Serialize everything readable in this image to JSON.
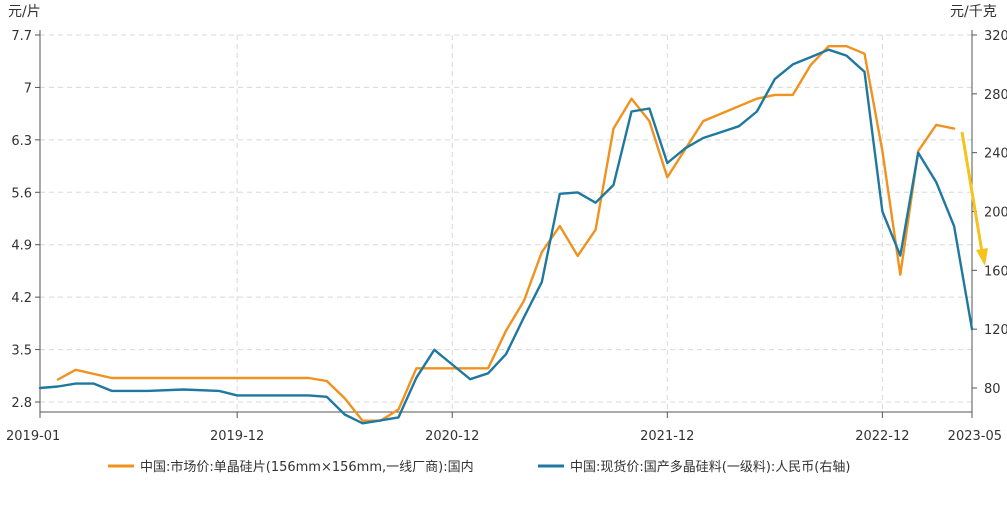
{
  "chart_data": {
    "type": "line",
    "left_unit": "元/片",
    "right_unit": "元/千克",
    "x_ticks": [
      "2019-01",
      "2019-12",
      "2020-12",
      "2021-12",
      "2022-12",
      "2023-05"
    ],
    "y_left_ticks": [
      "7.7",
      "7",
      "6.3",
      "5.6",
      "4.9",
      "4.2",
      "3.5",
      "2.8"
    ],
    "y_right_ticks": [
      "320",
      "280",
      "240",
      "200",
      "160",
      "120",
      "80"
    ],
    "ylim_left": [
      2.8,
      7.7
    ],
    "ylim_right": [
      80,
      320
    ],
    "grid": true,
    "legend_position": "bottom",
    "colors": {
      "wafer": "#F0921F",
      "polysilicon": "#1F78A0",
      "arrow": "#F7C31A"
    },
    "series": [
      {
        "name": "中国:市场价:单晶硅片(156mm×156mm,一线厂商):国内",
        "axis": "left",
        "points": [
          [
            "2019-02",
            3.1
          ],
          [
            "2019-03",
            3.23
          ],
          [
            "2019-05",
            3.12
          ],
          [
            "2019-08",
            3.12
          ],
          [
            "2019-12",
            3.12
          ],
          [
            "2020-04",
            3.12
          ],
          [
            "2020-05",
            3.08
          ],
          [
            "2020-06",
            2.85
          ],
          [
            "2020-07",
            2.55
          ],
          [
            "2020-08",
            2.55
          ],
          [
            "2020-09",
            2.7
          ],
          [
            "2020-10",
            3.25
          ],
          [
            "2020-12",
            3.25
          ],
          [
            "2021-02",
            3.25
          ],
          [
            "2021-03",
            3.75
          ],
          [
            "2021-04",
            4.15
          ],
          [
            "2021-05",
            4.8
          ],
          [
            "2021-06",
            5.15
          ],
          [
            "2021-07",
            4.75
          ],
          [
            "2021-08",
            5.1
          ],
          [
            "2021-09",
            6.45
          ],
          [
            "2021-10",
            6.85
          ],
          [
            "2021-11",
            6.55
          ],
          [
            "2021-12",
            5.8
          ],
          [
            "2022-02",
            6.55
          ],
          [
            "2022-03",
            6.65
          ],
          [
            "2022-05",
            6.85
          ],
          [
            "2022-06",
            6.9
          ],
          [
            "2022-07",
            6.9
          ],
          [
            "2022-08",
            7.3
          ],
          [
            "2022-09",
            7.55
          ],
          [
            "2022-10",
            7.55
          ],
          [
            "2022-11",
            7.45
          ],
          [
            "2022-12",
            6.15
          ],
          [
            "2023-01",
            4.5
          ],
          [
            "2023-02",
            6.15
          ],
          [
            "2023-03",
            6.5
          ],
          [
            "2023-04",
            6.45
          ]
        ]
      },
      {
        "name": "中国:现货价:国产多晶硅料(一级料):人民币(右轴)",
        "axis": "right",
        "points": [
          [
            "2019-01",
            80
          ],
          [
            "2019-02",
            81
          ],
          [
            "2019-03",
            83
          ],
          [
            "2019-04",
            83
          ],
          [
            "2019-05",
            78
          ],
          [
            "2019-07",
            78
          ],
          [
            "2019-09",
            79
          ],
          [
            "2019-11",
            78
          ],
          [
            "2019-12",
            75
          ],
          [
            "2020-02",
            75
          ],
          [
            "2020-04",
            75
          ],
          [
            "2020-05",
            74
          ],
          [
            "2020-06",
            62
          ],
          [
            "2020-07",
            56
          ],
          [
            "2020-08",
            58
          ],
          [
            "2020-09",
            60
          ],
          [
            "2020-10",
            87
          ],
          [
            "2020-11",
            106
          ],
          [
            "2020-12",
            96
          ],
          [
            "2021-01",
            86
          ],
          [
            "2021-02",
            90
          ],
          [
            "2021-03",
            103
          ],
          [
            "2021-04",
            128
          ],
          [
            "2021-05",
            152
          ],
          [
            "2021-06",
            212
          ],
          [
            "2021-07",
            213
          ],
          [
            "2021-08",
            206
          ],
          [
            "2021-09",
            218
          ],
          [
            "2021-10",
            268
          ],
          [
            "2021-11",
            270
          ],
          [
            "2021-12",
            233
          ],
          [
            "2022-01",
            243
          ],
          [
            "2022-02",
            250
          ],
          [
            "2022-03",
            254
          ],
          [
            "2022-04",
            258
          ],
          [
            "2022-05",
            268
          ],
          [
            "2022-06",
            290
          ],
          [
            "2022-07",
            300
          ],
          [
            "2022-08",
            305
          ],
          [
            "2022-09",
            310
          ],
          [
            "2022-10",
            306
          ],
          [
            "2022-11",
            295
          ],
          [
            "2022-12",
            200
          ],
          [
            "2023-01",
            170
          ],
          [
            "2023-02",
            240
          ],
          [
            "2023-03",
            220
          ],
          [
            "2023-04",
            190
          ],
          [
            "2023-05",
            120
          ]
        ]
      }
    ]
  }
}
